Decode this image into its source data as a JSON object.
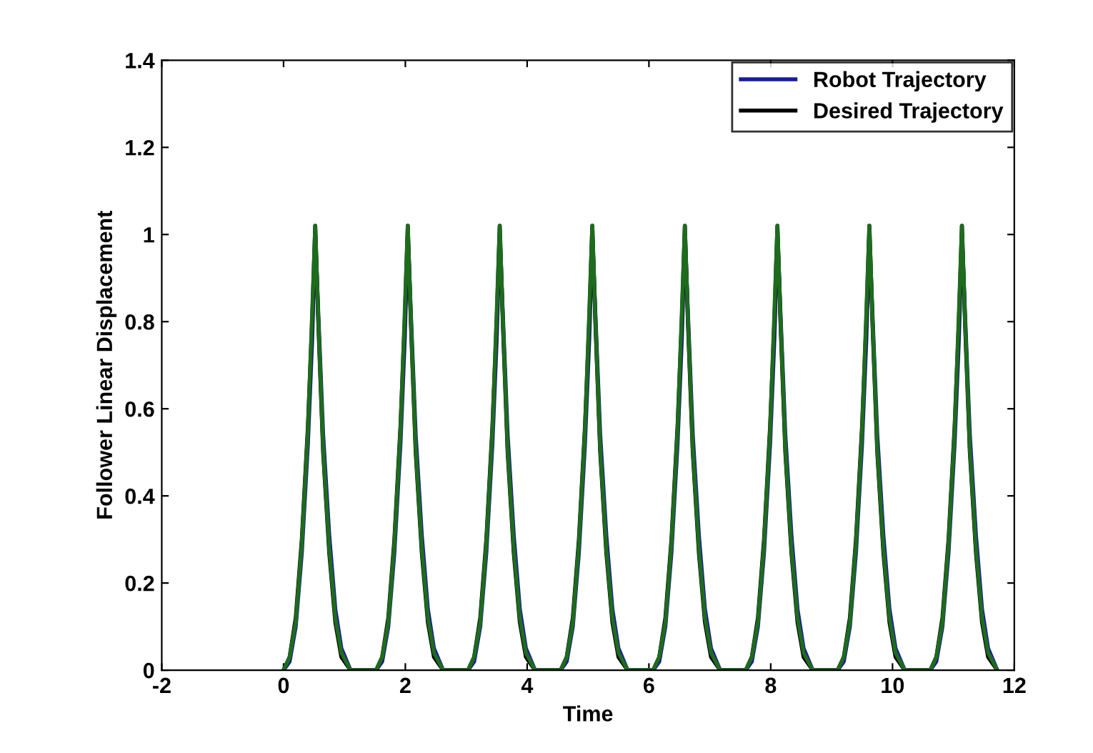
{
  "chart_data": {
    "type": "line",
    "xlabel": "Time",
    "ylabel": "Follower Linear Displacement",
    "x": [
      0,
      0.1,
      0.2,
      0.3,
      0.4,
      0.47,
      0.52,
      0.57,
      0.65,
      0.75,
      0.85,
      0.95,
      1.1,
      1.52,
      1.62,
      1.72,
      1.82,
      1.92,
      1.99,
      2.04,
      2.09,
      2.17,
      2.27,
      2.37,
      2.47,
      2.62,
      3.03,
      3.13,
      3.23,
      3.33,
      3.43,
      3.5,
      3.55,
      3.6,
      3.68,
      3.78,
      3.88,
      3.98,
      4.13,
      4.55,
      4.65,
      4.75,
      4.85,
      4.95,
      5.02,
      5.07,
      5.12,
      5.2,
      5.3,
      5.4,
      5.5,
      5.65,
      6.07,
      6.17,
      6.27,
      6.37,
      6.47,
      6.54,
      6.59,
      6.64,
      6.72,
      6.82,
      6.92,
      7.02,
      7.17,
      7.59,
      7.69,
      7.79,
      7.89,
      7.99,
      8.06,
      8.11,
      8.16,
      8.24,
      8.34,
      8.44,
      8.54,
      8.69,
      9.1,
      9.2,
      9.3,
      9.4,
      9.5,
      9.57,
      9.62,
      9.67,
      9.75,
      9.85,
      9.95,
      10.05,
      10.2,
      10.62,
      10.72,
      10.82,
      10.92,
      11.02,
      11.09,
      11.14,
      11.19,
      11.27,
      11.37,
      11.47,
      11.57,
      11.72
    ],
    "series": [
      {
        "name": "Robot Trajectory",
        "color": "#1a1aa0",
        "values": [
          0,
          0.02,
          0.1,
          0.27,
          0.52,
          0.76,
          1.0,
          0.82,
          0.54,
          0.31,
          0.14,
          0.05,
          0,
          0,
          0.02,
          0.1,
          0.27,
          0.52,
          0.76,
          1.0,
          0.82,
          0.54,
          0.31,
          0.14,
          0.05,
          0,
          0,
          0.02,
          0.1,
          0.27,
          0.52,
          0.76,
          1.0,
          0.82,
          0.54,
          0.31,
          0.14,
          0.05,
          0,
          0,
          0.02,
          0.1,
          0.27,
          0.52,
          0.76,
          1.0,
          0.82,
          0.54,
          0.31,
          0.14,
          0.05,
          0,
          0,
          0.02,
          0.1,
          0.27,
          0.52,
          0.76,
          1.0,
          0.82,
          0.54,
          0.31,
          0.14,
          0.05,
          0,
          0,
          0.02,
          0.1,
          0.27,
          0.52,
          0.76,
          1.0,
          0.82,
          0.54,
          0.31,
          0.14,
          0.05,
          0,
          0,
          0.02,
          0.1,
          0.27,
          0.52,
          0.76,
          1.0,
          0.82,
          0.54,
          0.31,
          0.14,
          0.05,
          0,
          0,
          0.02,
          0.1,
          0.27,
          0.52,
          0.76,
          1.0,
          0.82,
          0.54,
          0.31,
          0.14,
          0.05,
          0
        ]
      },
      {
        "name": "Desired Trajectory",
        "color": "#000000",
        "values": [
          0,
          0.03,
          0.12,
          0.3,
          0.56,
          0.8,
          1.02,
          0.8,
          0.5,
          0.27,
          0.11,
          0.03,
          0,
          0,
          0.03,
          0.12,
          0.3,
          0.56,
          0.8,
          1.02,
          0.8,
          0.5,
          0.27,
          0.11,
          0.03,
          0,
          0,
          0.03,
          0.12,
          0.3,
          0.56,
          0.8,
          1.02,
          0.8,
          0.5,
          0.27,
          0.11,
          0.03,
          0,
          0,
          0.03,
          0.12,
          0.3,
          0.56,
          0.8,
          1.02,
          0.8,
          0.5,
          0.27,
          0.11,
          0.03,
          0,
          0,
          0.03,
          0.12,
          0.3,
          0.56,
          0.8,
          1.02,
          0.8,
          0.5,
          0.27,
          0.11,
          0.03,
          0,
          0,
          0.03,
          0.12,
          0.3,
          0.56,
          0.8,
          1.02,
          0.8,
          0.5,
          0.27,
          0.11,
          0.03,
          0,
          0,
          0.03,
          0.12,
          0.3,
          0.56,
          0.8,
          1.02,
          0.8,
          0.5,
          0.27,
          0.11,
          0.03,
          0,
          0,
          0.03,
          0.12,
          0.3,
          0.56,
          0.8,
          1.02,
          0.8,
          0.5,
          0.27,
          0.11,
          0.03,
          0
        ]
      },
      {
        "color": "#1e6b1e",
        "values": [
          0,
          0.03,
          0.11,
          0.29,
          0.55,
          0.82,
          1.02,
          0.81,
          0.51,
          0.28,
          0.12,
          0.04,
          0,
          0,
          0.03,
          0.11,
          0.29,
          0.55,
          0.82,
          1.02,
          0.81,
          0.51,
          0.28,
          0.12,
          0.04,
          0,
          0,
          0.03,
          0.11,
          0.29,
          0.55,
          0.82,
          1.02,
          0.81,
          0.51,
          0.28,
          0.12,
          0.04,
          0,
          0,
          0.03,
          0.11,
          0.29,
          0.55,
          0.82,
          1.02,
          0.81,
          0.51,
          0.28,
          0.12,
          0.04,
          0,
          0,
          0.03,
          0.11,
          0.29,
          0.55,
          0.82,
          1.02,
          0.81,
          0.51,
          0.28,
          0.12,
          0.04,
          0,
          0,
          0.03,
          0.11,
          0.29,
          0.55,
          0.82,
          1.02,
          0.81,
          0.51,
          0.28,
          0.12,
          0.04,
          0,
          0,
          0.03,
          0.11,
          0.29,
          0.55,
          0.82,
          1.02,
          0.81,
          0.51,
          0.28,
          0.12,
          0.04,
          0,
          0,
          0.03,
          0.11,
          0.29,
          0.55,
          0.82,
          1.02,
          0.81,
          0.51,
          0.28,
          0.12,
          0.04,
          0
        ]
      }
    ],
    "xlim": [
      -2,
      12
    ],
    "xticks": [
      -2,
      0,
      2,
      4,
      6,
      8,
      10,
      12
    ],
    "ylim": [
      0,
      1.4
    ],
    "yticks": [
      0,
      0.2,
      0.4,
      0.6,
      0.8,
      1,
      1.2,
      1.4
    ],
    "grid": false,
    "legend": "top right"
  }
}
